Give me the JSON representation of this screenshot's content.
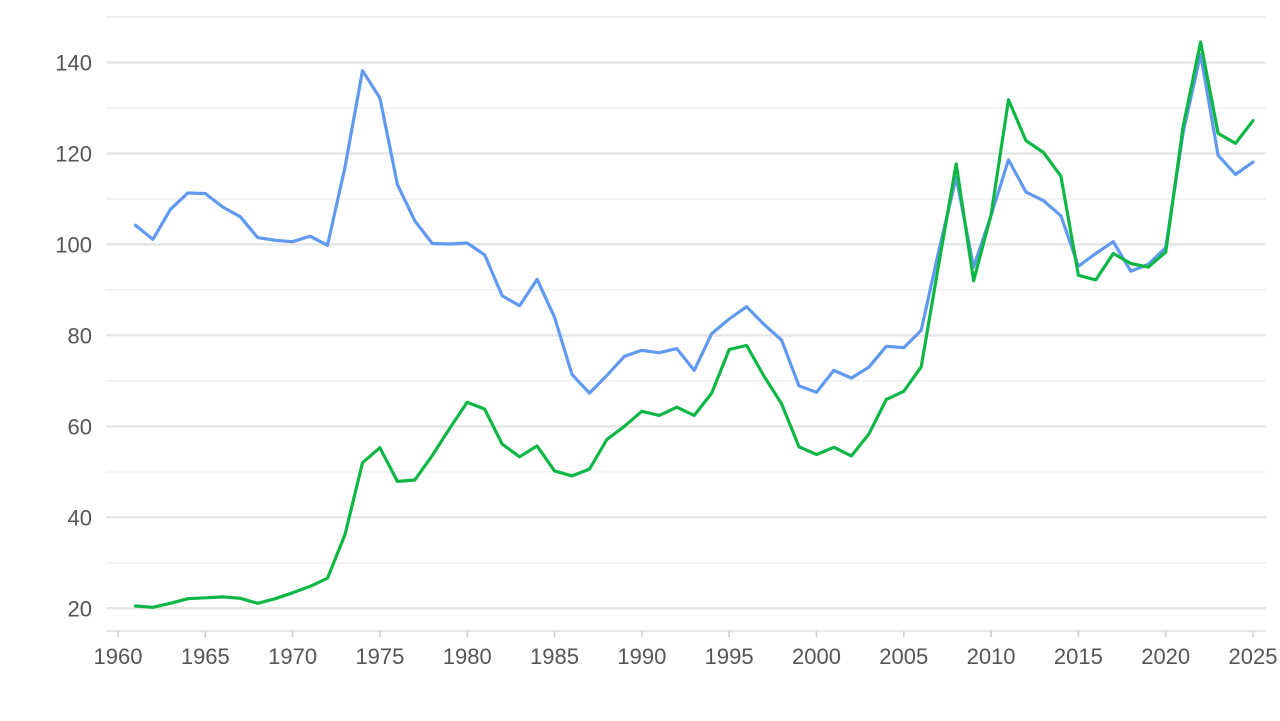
{
  "chart_data": {
    "type": "line",
    "title": "",
    "xlabel": "",
    "ylabel": "",
    "xlim": [
      1960,
      2025
    ],
    "ylim": [
      15,
      150
    ],
    "x_ticks": [
      1960,
      1965,
      1970,
      1975,
      1980,
      1985,
      1990,
      1995,
      2000,
      2005,
      2010,
      2015,
      2020,
      2025
    ],
    "y_ticks": [
      20,
      40,
      60,
      80,
      100,
      120,
      140
    ],
    "y_minor_gridlines": [
      30,
      50,
      70,
      90,
      110,
      130,
      150
    ],
    "grid": true,
    "legend": "none",
    "x": [
      1961,
      1962,
      1963,
      1964,
      1965,
      1966,
      1967,
      1968,
      1969,
      1970,
      1971,
      1972,
      1973,
      1974,
      1975,
      1976,
      1977,
      1978,
      1979,
      1980,
      1981,
      1982,
      1983,
      1984,
      1985,
      1986,
      1987,
      1988,
      1989,
      1990,
      1991,
      1992,
      1993,
      1994,
      1995,
      1996,
      1997,
      1998,
      1999,
      2000,
      2001,
      2002,
      2003,
      2004,
      2005,
      2006,
      2007,
      2008,
      2009,
      2010,
      2011,
      2012,
      2013,
      2014,
      2015,
      2016,
      2017,
      2018,
      2019,
      2020,
      2021,
      2022,
      2023,
      2024,
      2025
    ],
    "series": [
      {
        "color": "#6199f0",
        "values": [
          104.2,
          101.1,
          107.7,
          111.3,
          111.2,
          108.2,
          106.1,
          101.5,
          100.9,
          100.6,
          101.8,
          99.8,
          117.0,
          138.2,
          132.2,
          113.2,
          105.2,
          100.2,
          100.1,
          100.3,
          97.7,
          88.7,
          86.5,
          92.3,
          84.0,
          71.4,
          67.3,
          71.2,
          75.4,
          76.7,
          76.2,
          77.1,
          72.3,
          80.4,
          83.6,
          86.3,
          82.4,
          79.0,
          68.9,
          67.5,
          72.3,
          70.6,
          73.0,
          77.6,
          77.3,
          81.1,
          98.5,
          114.7,
          95.0,
          106.4,
          118.6,
          111.5,
          109.6,
          106.3,
          95.2,
          98.0,
          100.6,
          94.1,
          95.6,
          99.3,
          124.7,
          141.8,
          119.6,
          115.4,
          118.1
        ]
      },
      {
        "color": "#0eb745",
        "values": [
          20.5,
          20.2,
          21.1,
          22.1,
          22.3,
          22.5,
          22.2,
          21.1,
          22.1,
          23.4,
          24.8,
          26.6,
          36.2,
          52.0,
          55.3,
          47.9,
          48.2,
          53.6,
          59.6,
          65.3,
          63.8,
          56.1,
          53.3,
          55.7,
          50.2,
          49.1,
          50.6,
          57.1,
          60.0,
          63.3,
          62.4,
          64.2,
          62.4,
          67.3,
          76.9,
          77.8,
          71.0,
          65.0,
          55.5,
          53.8,
          55.4,
          53.5,
          58.3,
          65.9,
          67.7,
          73.1,
          95.6,
          117.7,
          92.0,
          106.5,
          131.8,
          122.8,
          120.2,
          115.0,
          93.2,
          92.2,
          98.0,
          95.8,
          95.0,
          98.3,
          126.0,
          144.5,
          124.4,
          122.2,
          127.2
        ]
      }
    ]
  }
}
